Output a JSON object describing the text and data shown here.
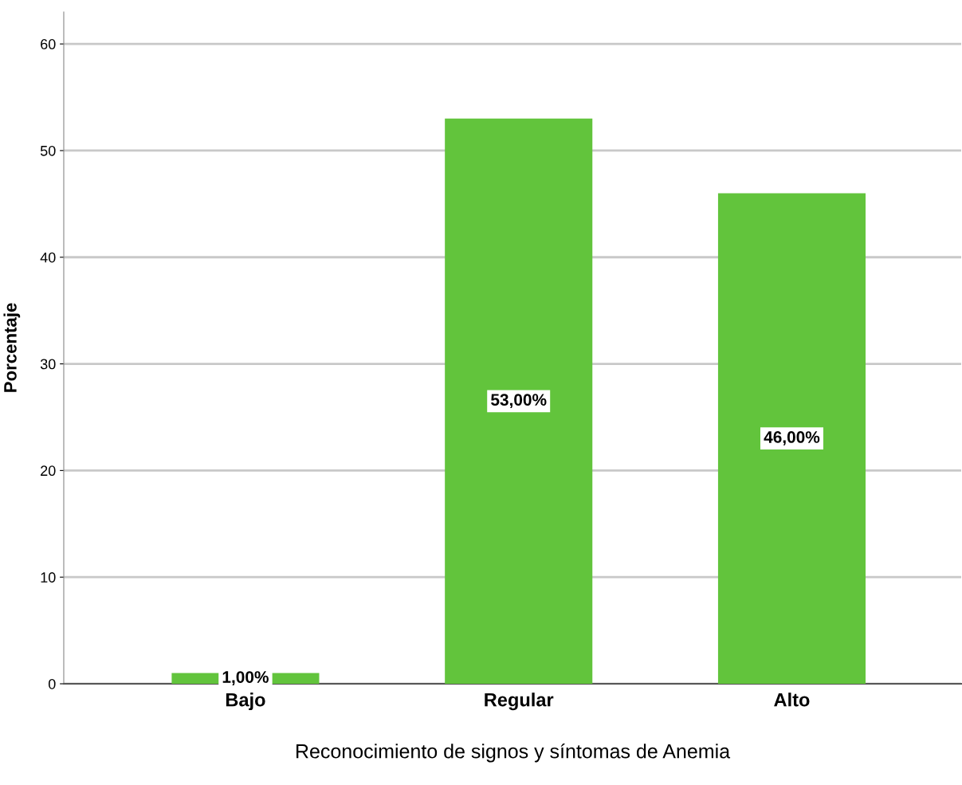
{
  "chart_data": {
    "type": "bar",
    "xlabel": "Reconocimiento de signos y síntomas de Anemia",
    "ylabel": "Porcentaje",
    "categories": [
      "Bajo",
      "Regular",
      "Alto"
    ],
    "values": [
      1,
      53,
      46
    ],
    "color": "#62c43c",
    "value_labels": [
      "1,00%",
      "53,00%",
      "46,00%"
    ],
    "ylim": [
      0,
      63
    ],
    "yticks": [
      0,
      10,
      20,
      30,
      40,
      50,
      60
    ],
    "grid": "y"
  }
}
